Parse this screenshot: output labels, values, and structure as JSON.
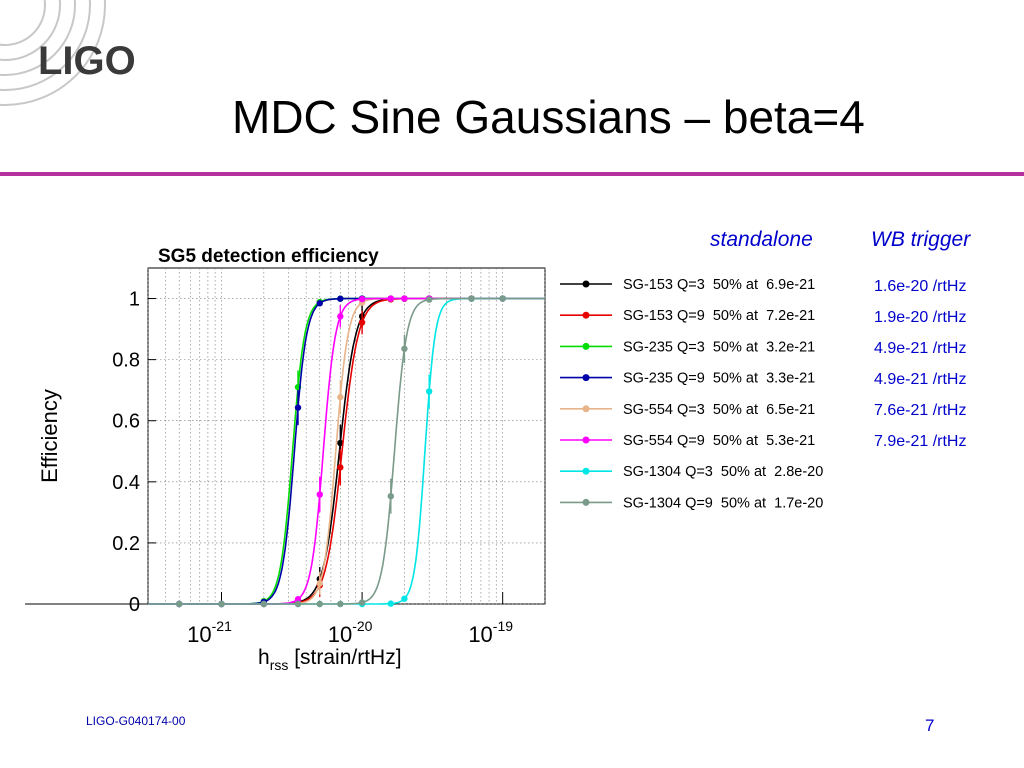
{
  "slide": {
    "logo_text": "LIGO",
    "title": "MDC Sine Gaussians – beta=4",
    "columns": {
      "a": "standalone",
      "b": "WB trigger"
    },
    "wb_trigger_values": [
      "1.6e-20 /rtHz",
      "1.9e-20 /rtHz",
      "4.9e-21 /rtHz",
      "4.9e-21 /rtHz",
      "7.6e-21 /rtHz",
      "7.9e-21 /rtHz"
    ],
    "footer": "LIGO-G040174-00",
    "page_number": "7",
    "accent_color": "#b5329e",
    "link_color": "#0000cc"
  },
  "chart_data": {
    "type": "scatter",
    "title": "SG5 detection efficiency",
    "ylabel": "Efficiency",
    "xlabel_main": "h",
    "xlabel_sub": "rss",
    "xlabel_rest": " [strain/rtHz]",
    "x_scale": "log",
    "xlim": [
      3e-22,
      2e-19
    ],
    "ylim": [
      0,
      1.1
    ],
    "yticks": [
      {
        "v": 0,
        "label": "0"
      },
      {
        "v": 0.2,
        "label": "0.2"
      },
      {
        "v": 0.4,
        "label": "0.4"
      },
      {
        "v": 0.6,
        "label": "0.6"
      },
      {
        "v": 0.8,
        "label": "0.8"
      },
      {
        "v": 1,
        "label": "1"
      }
    ],
    "xticks": [
      {
        "v": 1e-21,
        "base": "10",
        "exp": "-21"
      },
      {
        "v": 1e-20,
        "base": "10",
        "exp": "-20"
      },
      {
        "v": 1e-19,
        "base": "10",
        "exp": "-19"
      }
    ],
    "grid": true,
    "legend_position": "right",
    "x_samples": [
      5e-22,
      1e-21,
      2e-21,
      3.5e-21,
      5e-21,
      7e-21,
      1e-20,
      1.6e-20,
      2e-20,
      3e-20,
      6e-20,
      1e-19
    ],
    "series": [
      {
        "label": "SG-153 Q=3  50% at  6.9e-21",
        "color": "#000000",
        "mid": 6.9e-21,
        "steep": 7.5
      },
      {
        "label": "SG-153 Q=9  50% at  7.2e-21",
        "color": "#e60000",
        "mid": 7.2e-21,
        "steep": 7.5
      },
      {
        "label": "SG-235 Q=3  50% at  3.2e-21",
        "color": "#00dd00",
        "mid": 3.2e-21,
        "steep": 10
      },
      {
        "label": "SG-235 Q=9  50% at  3.3e-21",
        "color": "#0000aa",
        "mid": 3.3e-21,
        "steep": 10
      },
      {
        "label": "SG-554 Q=3  50% at  6.5e-21",
        "color": "#e8b48a",
        "mid": 6.5e-21,
        "steep": 10
      },
      {
        "label": "SG-554 Q=9  50% at  5.3e-21",
        "color": "#ff00ff",
        "mid": 5.3e-21,
        "steep": 10
      },
      {
        "label": "SG-1304 Q=3  50% at  2.8e-20",
        "color": "#00e5e5",
        "mid": 2.8e-20,
        "steep": 12
      },
      {
        "label": "SG-1304 Q=9  50% at  1.7e-20",
        "color": "#7a9a8a",
        "mid": 1.7e-20,
        "steep": 10
      }
    ]
  }
}
